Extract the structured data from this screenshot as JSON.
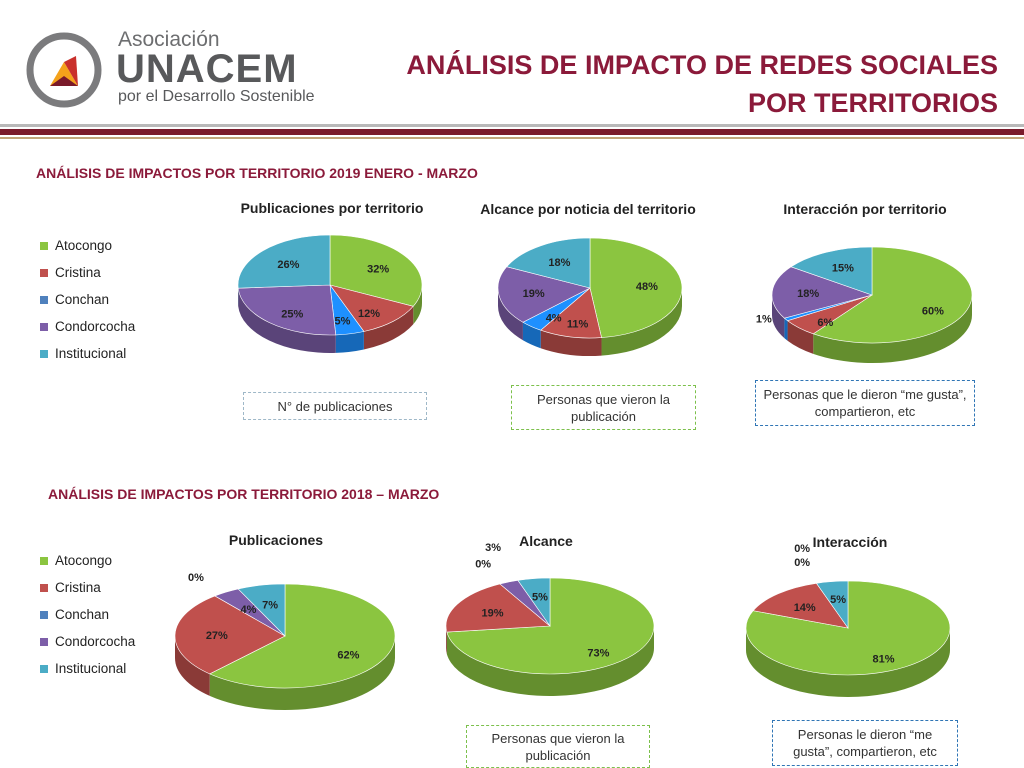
{
  "header": {
    "org_name": "Asociación",
    "org_brand": "UNACEM",
    "org_sub": "por el Desarrollo Sostenible",
    "title_line1": "ANÁLISIS DE IMPACTO DE REDES SOCIALES",
    "title_line2": "POR TERRITORIOS"
  },
  "colors": {
    "Atocongo": "#8bc540",
    "Cristina": "#c0504d",
    "Conchan": "#1e90ff",
    "Conchan_legend": "#4f81bd",
    "Condorcocha": "#7d5ea8",
    "Institucional": "#4bacc6",
    "accent": "#8b1a3a"
  },
  "legend": [
    "Atocongo",
    "Cristina",
    "Conchan",
    "Condorcocha",
    "Institucional"
  ],
  "section_2019": {
    "title": "ANÁLISIS DE IMPACTOS POR TERRITORIO 2019 ENERO - MARZO"
  },
  "section_2018": {
    "title": "ANÁLISIS DE IMPACTOS POR TERRITORIO 2018 – MARZO"
  },
  "notes": {
    "publicaciones_2019": "N° de publicaciones",
    "alcance_2019": "Personas que vieron la publicación",
    "interaccion_2019": "Personas que le dieron “me gusta”, compartieron, etc",
    "alcance_2018": "Personas que vieron la publicación",
    "interaccion_2018": "Personas le dieron “me gusta”, compartieron, etc"
  },
  "chart_data": [
    {
      "type": "pie",
      "title": "Publicaciones por territorio",
      "categories": [
        "Atocongo",
        "Cristina",
        "Conchan",
        "Condorcocha",
        "Institucional"
      ],
      "values": [
        32,
        12,
        5,
        25,
        26
      ],
      "labels": [
        "32%",
        "12%",
        "5%",
        "25%",
        "26%"
      ]
    },
    {
      "type": "pie",
      "title": "Alcance por noticia del territorio",
      "categories": [
        "Atocongo",
        "Cristina",
        "Conchan",
        "Condorcocha",
        "Institucional"
      ],
      "values": [
        48,
        11,
        4,
        19,
        18
      ],
      "labels": [
        "48%",
        "11%",
        "4%",
        "19%",
        "18%"
      ]
    },
    {
      "type": "pie",
      "title": "Interacción por territorio",
      "categories": [
        "Atocongo",
        "Cristina",
        "Conchan",
        "Condorcocha",
        "Institucional"
      ],
      "values": [
        60,
        6,
        1,
        18,
        15
      ],
      "labels": [
        "60%",
        "6%",
        "1%",
        "18%",
        "15%"
      ]
    },
    {
      "type": "pie",
      "title": "Publicaciones",
      "categories": [
        "Atocongo",
        "Cristina",
        "Conchan",
        "Condorcocha",
        "Institucional"
      ],
      "values": [
        62,
        27,
        0,
        4,
        7
      ],
      "labels": [
        "62%",
        "27%",
        "0%",
        "4%",
        "7%"
      ]
    },
    {
      "type": "pie",
      "title": "Alcance",
      "categories": [
        "Atocongo",
        "Cristina",
        "Conchan",
        "Condorcocha",
        "Institucional"
      ],
      "values": [
        73,
        19,
        0,
        3,
        5
      ],
      "labels": [
        "73%",
        "19%",
        "0%",
        "3%",
        "5%"
      ]
    },
    {
      "type": "pie",
      "title": "Interacción",
      "categories": [
        "Atocongo",
        "Cristina",
        "Conchan",
        "Condorcocha",
        "Institucional"
      ],
      "values": [
        81,
        14,
        0,
        0,
        5
      ],
      "labels": [
        "81%",
        "14%",
        "0%",
        "0%",
        "5%"
      ]
    }
  ]
}
